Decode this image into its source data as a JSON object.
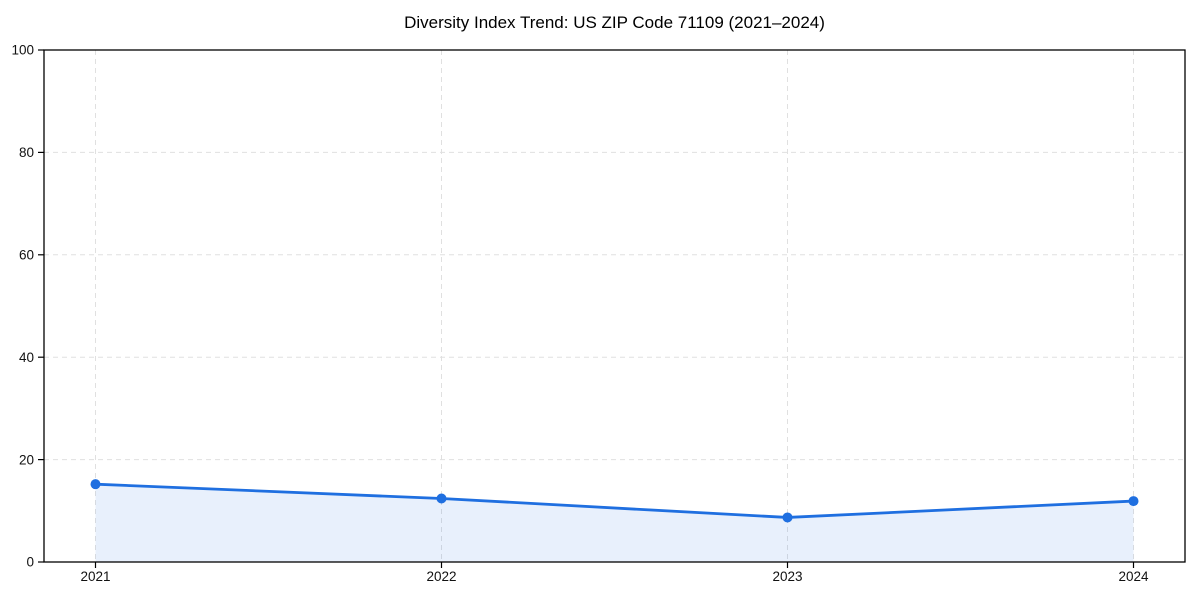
{
  "figure": {
    "background": "#ffffff"
  },
  "colors": {
    "line": "#1f6fe0",
    "marker": "#1f6fe0",
    "area_fill": "#1f6fe0",
    "area_opacity": 0.1,
    "grid": "#e0e0e0",
    "axis": "#000000",
    "tick_label": "#111111",
    "title": "#000000"
  },
  "chart_data": {
    "type": "line",
    "title": "Diversity Index Trend: US ZIP Code 71109 (2021–2024)",
    "x": [
      "2021",
      "2022",
      "2023",
      "2024"
    ],
    "series": [
      {
        "name": "Diversity Index",
        "values": [
          15.2,
          12.4,
          8.7,
          11.9
        ]
      }
    ],
    "xlabel": "",
    "ylabel": "",
    "ylim": [
      0,
      100
    ],
    "yticks": [
      0,
      20,
      40,
      60,
      80,
      100
    ],
    "grid": true,
    "grid_style": "dashed",
    "area_fill_under_line": true,
    "marker": "circle",
    "legend_position": "none"
  }
}
